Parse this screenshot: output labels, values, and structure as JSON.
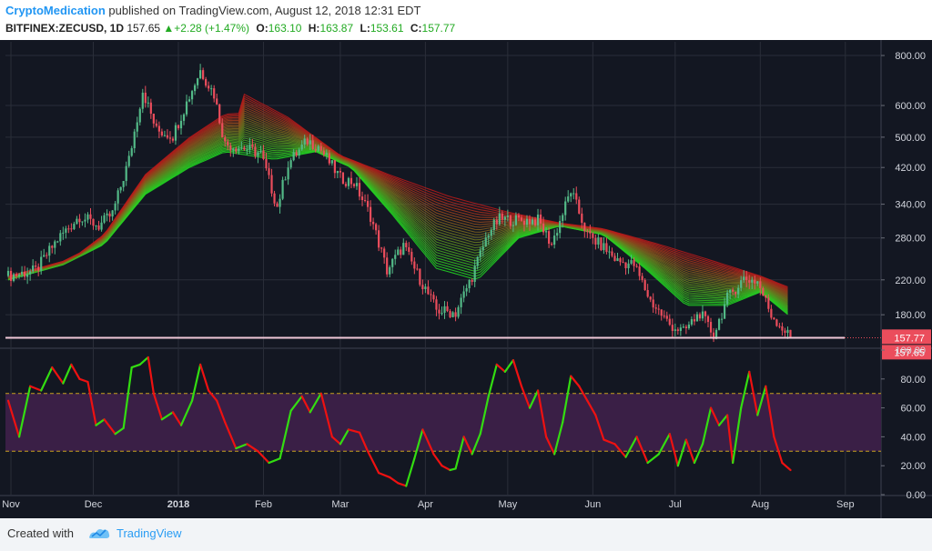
{
  "header": {
    "author": "CryptoMedication",
    "published_text": " published on TradingView.com, August 12, 2018 12:31 EDT",
    "symbol": "BITFINEX:ZECUSD, 1D",
    "last": "157.65",
    "change": "+2.28 (+1.47%)",
    "o_label": "O:",
    "o_value": "163.10",
    "h_label": "H:",
    "h_value": "163.87",
    "l_label": "L:",
    "l_value": "153.61",
    "c_label": "C:",
    "c_value": "157.77"
  },
  "footer": {
    "created_with": "Created with",
    "brand": "TradingView"
  },
  "colors": {
    "background": "#131722",
    "grid": "#2a2e39",
    "axis_text": "#d1d4dc",
    "candle_up": "#53b987",
    "candle_down": "#eb4d5c",
    "ribbon_short": "#22dd22",
    "ribbon_long": "#bb1a1a",
    "osc_bull": "#33dd11",
    "osc_bear": "#ee1111",
    "band_fill": "#3a1f46",
    "band_line": "#c8a21e",
    "hline": "#f0c8d8"
  },
  "chart_data": [
    {
      "type": "candlestick",
      "title": "BITFINEX:ZECUSD, 1D",
      "y_scale": "log",
      "ylim": [
        150,
        830
      ],
      "xlim": [
        "2017-10-30",
        "2018-09-14"
      ],
      "x_ticks": [
        "Nov",
        "Dec",
        "2018",
        "Feb",
        "Mar",
        "Apr",
        "May",
        "Jun",
        "Jul",
        "Aug",
        "Sep"
      ],
      "x_tick_dates": [
        "2017-11-01",
        "2017-12-01",
        "2018-01-01",
        "2018-02-01",
        "2018-03-01",
        "2018-04-01",
        "2018-05-01",
        "2018-06-01",
        "2018-07-01",
        "2018-08-01",
        "2018-09-01"
      ],
      "y_ticks": [
        "800.00",
        "600.00",
        "500.00",
        "420.00",
        "340.00",
        "280.00",
        "220.00",
        "180.00"
      ],
      "y_tick_values": [
        800,
        600,
        500,
        420,
        340,
        280,
        220,
        180
      ],
      "close_path": [
        [
          "2017-10-31",
          225
        ],
        [
          "2017-11-10",
          232
        ],
        [
          "2017-11-18",
          278
        ],
        [
          "2017-11-26",
          318
        ],
        [
          "2017-12-03",
          300
        ],
        [
          "2017-12-08",
          322
        ],
        [
          "2017-12-14",
          440
        ],
        [
          "2017-12-19",
          655
        ],
        [
          "2017-12-24",
          520
        ],
        [
          "2017-12-30",
          505
        ],
        [
          "2018-01-04",
          610
        ],
        [
          "2018-01-09",
          735
        ],
        [
          "2018-01-14",
          640
        ],
        [
          "2018-01-18",
          480
        ],
        [
          "2018-01-25",
          470
        ],
        [
          "2018-01-31",
          455
        ],
        [
          "2018-02-06",
          335
        ],
        [
          "2018-02-10",
          430
        ],
        [
          "2018-02-17",
          490
        ],
        [
          "2018-02-21",
          475
        ],
        [
          "2018-03-01",
          395
        ],
        [
          "2018-03-06",
          385
        ],
        [
          "2018-03-12",
          318
        ],
        [
          "2018-03-18",
          232
        ],
        [
          "2018-03-24",
          268
        ],
        [
          "2018-03-28",
          235
        ],
        [
          "2018-04-05",
          185
        ],
        [
          "2018-04-12",
          182
        ],
        [
          "2018-04-18",
          225
        ],
        [
          "2018-04-24",
          290
        ],
        [
          "2018-04-28",
          312
        ],
        [
          "2018-05-05",
          310
        ],
        [
          "2018-05-12",
          310
        ],
        [
          "2018-05-17",
          270
        ],
        [
          "2018-05-24",
          368
        ],
        [
          "2018-05-30",
          285
        ],
        [
          "2018-06-05",
          265
        ],
        [
          "2018-06-10",
          245
        ],
        [
          "2018-06-16",
          240
        ],
        [
          "2018-06-22",
          195
        ],
        [
          "2018-06-29",
          170
        ],
        [
          "2018-07-04",
          163
        ],
        [
          "2018-07-10",
          182
        ],
        [
          "2018-07-15",
          160
        ],
        [
          "2018-07-20",
          198
        ],
        [
          "2018-07-26",
          222
        ],
        [
          "2018-07-31",
          218
        ],
        [
          "2018-08-05",
          180
        ],
        [
          "2018-08-12",
          157.77
        ]
      ],
      "ribbon": {
        "short_ma_path": [
          [
            "2017-10-31",
            220
          ],
          [
            "2017-11-20",
            240
          ],
          [
            "2017-12-05",
            270
          ],
          [
            "2017-12-20",
            360
          ],
          [
            "2018-01-05",
            420
          ],
          [
            "2018-01-18",
            460
          ],
          [
            "2018-02-05",
            440
          ],
          [
            "2018-02-20",
            460
          ],
          [
            "2018-03-05",
            420
          ],
          [
            "2018-03-20",
            320
          ],
          [
            "2018-04-05",
            235
          ],
          [
            "2018-04-20",
            220
          ],
          [
            "2018-05-05",
            280
          ],
          [
            "2018-05-20",
            300
          ],
          [
            "2018-06-05",
            285
          ],
          [
            "2018-06-20",
            235
          ],
          [
            "2018-07-05",
            190
          ],
          [
            "2018-07-20",
            190
          ],
          [
            "2018-08-01",
            205
          ],
          [
            "2018-08-12",
            178
          ]
        ],
        "long_ma_path": [
          [
            "2018-01-25",
            640
          ],
          [
            "2018-02-10",
            560
          ],
          [
            "2018-03-01",
            450
          ],
          [
            "2018-03-20",
            400
          ],
          [
            "2018-04-10",
            355
          ],
          [
            "2018-05-01",
            325
          ],
          [
            "2018-05-20",
            305
          ],
          [
            "2018-06-05",
            295
          ],
          [
            "2018-06-25",
            270
          ],
          [
            "2018-07-15",
            245
          ],
          [
            "2018-08-01",
            225
          ],
          [
            "2018-08-12",
            210
          ]
        ]
      },
      "price_line": 157.65,
      "price_labels": [
        "157.77",
        "157.65"
      ]
    },
    {
      "type": "line",
      "ylim": [
        0,
        100
      ],
      "y_ticks": [
        "100.00",
        "80.00",
        "60.00",
        "40.00",
        "20.00",
        "0.00"
      ],
      "y_tick_values": [
        100,
        80,
        60,
        40,
        20,
        0
      ],
      "band": [
        30,
        70
      ],
      "series": [
        {
          "points": [
            [
              "2017-10-31",
              65
            ],
            [
              "2017-11-04",
              40
            ],
            [
              "2017-11-08",
              75
            ],
            [
              "2017-11-12",
              72
            ],
            [
              "2017-11-16",
              88
            ],
            [
              "2017-11-20",
              77
            ],
            [
              "2017-11-23",
              90
            ],
            [
              "2017-11-26",
              80
            ],
            [
              "2017-11-29",
              78
            ],
            [
              "2017-12-02",
              48
            ],
            [
              "2017-12-05",
              52
            ],
            [
              "2017-12-09",
              42
            ],
            [
              "2017-12-12",
              46
            ],
            [
              "2017-12-15",
              88
            ],
            [
              "2017-12-18",
              90
            ],
            [
              "2017-12-21",
              95
            ],
            [
              "2017-12-23",
              70
            ],
            [
              "2017-12-26",
              52
            ],
            [
              "2017-12-30",
              57
            ],
            [
              "2018-01-02",
              48
            ],
            [
              "2018-01-06",
              65
            ],
            [
              "2018-01-09",
              90
            ],
            [
              "2018-01-12",
              72
            ],
            [
              "2018-01-15",
              65
            ],
            [
              "2018-01-18",
              50
            ],
            [
              "2018-01-22",
              32
            ],
            [
              "2018-01-26",
              35
            ],
            [
              "2018-01-30",
              30
            ],
            [
              "2018-02-03",
              22
            ],
            [
              "2018-02-07",
              25
            ],
            [
              "2018-02-11",
              58
            ],
            [
              "2018-02-15",
              68
            ],
            [
              "2018-02-18",
              57
            ],
            [
              "2018-02-22",
              70
            ],
            [
              "2018-02-26",
              40
            ],
            [
              "2018-03-01",
              35
            ],
            [
              "2018-03-04",
              45
            ],
            [
              "2018-03-08",
              43
            ],
            [
              "2018-03-11",
              30
            ],
            [
              "2018-03-15",
              15
            ],
            [
              "2018-03-19",
              12
            ],
            [
              "2018-03-22",
              8
            ],
            [
              "2018-03-25",
              6
            ],
            [
              "2018-03-28",
              25
            ],
            [
              "2018-03-31",
              45
            ],
            [
              "2018-04-04",
              28
            ],
            [
              "2018-04-07",
              20
            ],
            [
              "2018-04-10",
              17
            ],
            [
              "2018-04-12",
              18
            ],
            [
              "2018-04-15",
              40
            ],
            [
              "2018-04-18",
              28
            ],
            [
              "2018-04-21",
              42
            ],
            [
              "2018-04-24",
              68
            ],
            [
              "2018-04-27",
              90
            ],
            [
              "2018-04-30",
              85
            ],
            [
              "2018-05-03",
              93
            ],
            [
              "2018-05-06",
              75
            ],
            [
              "2018-05-09",
              60
            ],
            [
              "2018-05-12",
              72
            ],
            [
              "2018-05-15",
              40
            ],
            [
              "2018-05-18",
              28
            ],
            [
              "2018-05-21",
              50
            ],
            [
              "2018-05-24",
              82
            ],
            [
              "2018-05-27",
              75
            ],
            [
              "2018-05-30",
              65
            ],
            [
              "2018-06-02",
              55
            ],
            [
              "2018-06-05",
              38
            ],
            [
              "2018-06-09",
              35
            ],
            [
              "2018-06-13",
              26
            ],
            [
              "2018-06-17",
              40
            ],
            [
              "2018-06-21",
              22
            ],
            [
              "2018-06-25",
              28
            ],
            [
              "2018-06-29",
              42
            ],
            [
              "2018-07-02",
              20
            ],
            [
              "2018-07-05",
              38
            ],
            [
              "2018-07-08",
              22
            ],
            [
              "2018-07-11",
              35
            ],
            [
              "2018-07-14",
              60
            ],
            [
              "2018-07-17",
              48
            ],
            [
              "2018-07-20",
              55
            ],
            [
              "2018-07-22",
              22
            ],
            [
              "2018-07-25",
              60
            ],
            [
              "2018-07-28",
              85
            ],
            [
              "2018-07-31",
              55
            ],
            [
              "2018-08-03",
              75
            ],
            [
              "2018-08-06",
              40
            ],
            [
              "2018-08-09",
              22
            ],
            [
              "2018-08-12",
              17
            ]
          ]
        }
      ]
    }
  ]
}
